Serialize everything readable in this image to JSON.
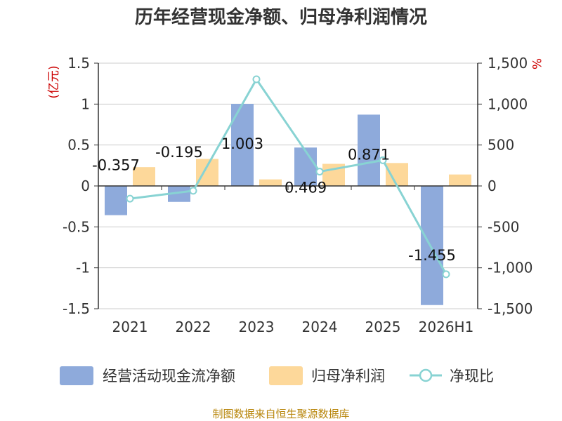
{
  "chart_data": {
    "type": "bar",
    "title": "历年经营现金净额、归母净利润情况",
    "left_unit": "(亿元)",
    "right_unit": "%",
    "categories": [
      "2021",
      "2022",
      "2023",
      "2024",
      "2025",
      "2026H1"
    ],
    "y_left": {
      "min": -1.5,
      "max": 1.5,
      "ticks": [
        "-1.5",
        "-1",
        "-0.5",
        "0",
        "0.5",
        "1",
        "1.5"
      ]
    },
    "y_right": {
      "min": -1500,
      "max": 1500,
      "ticks": [
        "-1,500",
        "-1,000",
        "-500",
        "0",
        "500",
        "1,000",
        "1,500"
      ]
    },
    "series": [
      {
        "name": "经营活动现金流净额",
        "type": "bar",
        "axis": "left",
        "color": "#8eaadb",
        "values": [
          -0.357,
          -0.195,
          1.003,
          0.469,
          0.871,
          -1.455
        ],
        "labels": [
          "-0.357",
          "-0.195",
          "1.003",
          "0.469",
          "0.871",
          "-1.455"
        ]
      },
      {
        "name": "归母净利润",
        "type": "bar",
        "axis": "left",
        "color": "#fdd89a",
        "values": [
          0.23,
          0.33,
          0.08,
          0.27,
          0.28,
          0.14
        ]
      },
      {
        "name": "净现比",
        "type": "line",
        "axis": "right",
        "color": "#88d3d3",
        "values": [
          -155,
          -59,
          1303,
          175,
          314,
          -1079
        ]
      }
    ],
    "grid": true,
    "legend": "bottom"
  },
  "source": "制图数据来自恒生聚源数据库"
}
